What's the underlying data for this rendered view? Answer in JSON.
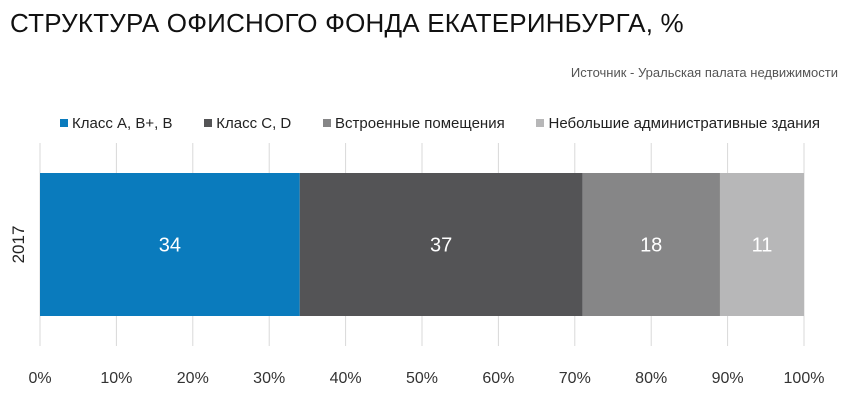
{
  "title": "СТРУКТУРА ОФИСНОГО ФОНДА ЕКАТЕРИНБУРГА, %",
  "source": "Источник - Уральская палата недвижимости",
  "chart_data": {
    "type": "bar",
    "orientation": "horizontal",
    "stacked": true,
    "categories": [
      "2017"
    ],
    "series": [
      {
        "name": "Класс A, B+, B",
        "values": [
          34
        ],
        "color": "#0a7bbd",
        "label_color": "#ffffff"
      },
      {
        "name": "Класс C, D",
        "values": [
          37
        ],
        "color": "#545456",
        "label_color": "#ffffff"
      },
      {
        "name": "Встроенные помещения",
        "values": [
          18
        ],
        "color": "#868687",
        "label_color": "#ffffff"
      },
      {
        "name": "Небольшие административные здания",
        "values": [
          11
        ],
        "color": "#b7b7b8",
        "label_color": "#ffffff"
      }
    ],
    "xlim": [
      0,
      100
    ],
    "xticks": [
      "0%",
      "10%",
      "20%",
      "30%",
      "40%",
      "50%",
      "60%",
      "70%",
      "80%",
      "90%",
      "100%"
    ],
    "grid": true,
    "legend_position": "top"
  }
}
